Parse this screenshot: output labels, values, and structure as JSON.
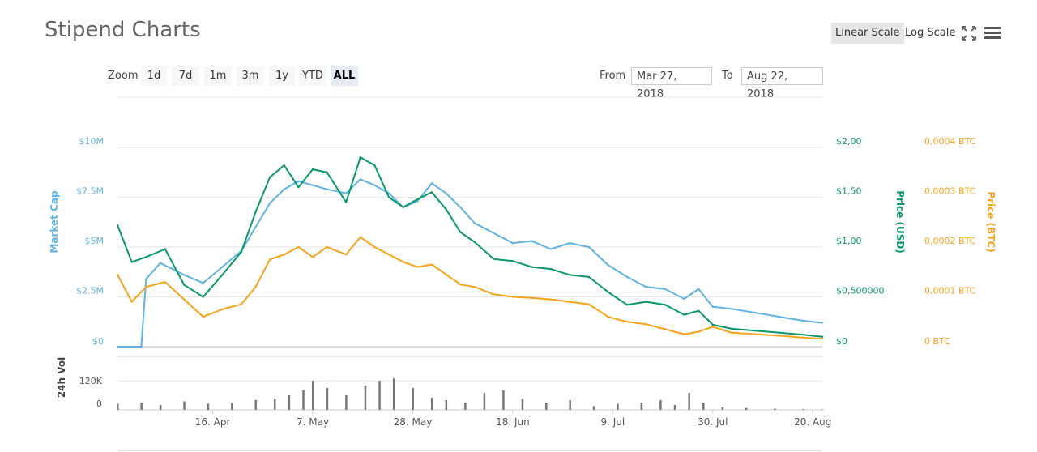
{
  "header": {
    "title": "Stipend Charts",
    "linear_label": "Linear Scale",
    "log_label": "Log Scale",
    "fullscreen_icon": "fullscreen-icon",
    "menu_icon": "hamburger-menu-icon"
  },
  "zoom": {
    "label": "Zoom",
    "buttons": [
      "1d",
      "7d",
      "1m",
      "3m",
      "1y",
      "YTD",
      "ALL"
    ],
    "active": "ALL"
  },
  "range": {
    "from_label": "From",
    "from_value": "Mar 27, 2018",
    "to_label": "To",
    "to_value": "Aug 22, 2018"
  },
  "colors": {
    "market_cap": "#5fb3e4",
    "price_usd": "#099866",
    "price_btc": "#f7a21b",
    "volume": "#777777",
    "grid": "#e6e6e6"
  },
  "chart_data": {
    "type": "line",
    "x_start": "2018-03-27",
    "x_end": "2018-08-22",
    "xticks": [
      "16. Apr",
      "7. May",
      "28. May",
      "18. Jun",
      "9. Jul",
      "30. Jul",
      "20. Aug"
    ],
    "axes": {
      "market_cap": {
        "label": "Market Cap",
        "ticks": [
          "$0",
          "$2.5M",
          "$5M",
          "$7.5M",
          "$10M"
        ],
        "ylim": [
          0,
          10000000
        ]
      },
      "price_usd": {
        "label": "Price (USD)",
        "ticks": [
          "$0",
          "$0,500000",
          "$1,00",
          "$1,50",
          "$2,00"
        ],
        "ylim": [
          0,
          2.0
        ]
      },
      "price_btc": {
        "label": "Price (BTC)",
        "ticks": [
          "0 BTC",
          "0,0001 BTC",
          "0,0002 BTC",
          "0,0003 BTC",
          "0,0004 BTC"
        ],
        "ylim": [
          0,
          0.0004
        ]
      },
      "volume": {
        "label": "24h Vol",
        "ticks": [
          "0",
          "120K"
        ],
        "ylim": [
          0,
          220000
        ]
      }
    },
    "series": [
      {
        "name": "Market Cap",
        "axis": "market_cap",
        "dates": [
          "2018-03-27",
          "2018-04-01",
          "2018-04-02",
          "2018-04-05",
          "2018-04-10",
          "2018-04-14",
          "2018-04-18",
          "2018-04-22",
          "2018-04-25",
          "2018-04-28",
          "2018-05-01",
          "2018-05-04",
          "2018-05-07",
          "2018-05-10",
          "2018-05-14",
          "2018-05-17",
          "2018-05-20",
          "2018-05-23",
          "2018-05-26",
          "2018-05-29",
          "2018-06-01",
          "2018-06-04",
          "2018-06-07",
          "2018-06-10",
          "2018-06-14",
          "2018-06-18",
          "2018-06-22",
          "2018-06-26",
          "2018-06-30",
          "2018-07-04",
          "2018-07-08",
          "2018-07-12",
          "2018-07-16",
          "2018-07-20",
          "2018-07-24",
          "2018-07-27",
          "2018-07-30",
          "2018-08-03",
          "2018-08-08",
          "2018-08-13",
          "2018-08-18",
          "2018-08-22"
        ],
        "values": [
          0,
          0,
          3400000,
          4200000,
          3600000,
          3200000,
          4000000,
          4800000,
          6000000,
          7200000,
          7900000,
          8300000,
          8100000,
          7900000,
          7700000,
          8400000,
          8100000,
          7700000,
          7000000,
          7300000,
          8200000,
          7700000,
          7000000,
          6200000,
          5700000,
          5200000,
          5300000,
          4900000,
          5200000,
          5000000,
          4100000,
          3500000,
          3000000,
          2900000,
          2400000,
          2900000,
          2000000,
          1900000,
          1700000,
          1500000,
          1300000,
          1200000
        ]
      },
      {
        "name": "Price (USD)",
        "axis": "price_usd",
        "dates": [
          "2018-03-27",
          "2018-03-30",
          "2018-04-02",
          "2018-04-06",
          "2018-04-10",
          "2018-04-14",
          "2018-04-18",
          "2018-04-22",
          "2018-04-25",
          "2018-04-28",
          "2018-05-01",
          "2018-05-04",
          "2018-05-07",
          "2018-05-10",
          "2018-05-14",
          "2018-05-17",
          "2018-05-20",
          "2018-05-23",
          "2018-05-26",
          "2018-05-29",
          "2018-06-01",
          "2018-06-04",
          "2018-06-07",
          "2018-06-10",
          "2018-06-14",
          "2018-06-18",
          "2018-06-22",
          "2018-06-26",
          "2018-06-30",
          "2018-07-04",
          "2018-07-08",
          "2018-07-12",
          "2018-07-16",
          "2018-07-20",
          "2018-07-24",
          "2018-07-27",
          "2018-07-30",
          "2018-08-03",
          "2018-08-08",
          "2018-08-13",
          "2018-08-18",
          "2018-08-22"
        ],
        "values": [
          1.22,
          0.85,
          0.9,
          0.98,
          0.62,
          0.5,
          0.72,
          0.95,
          1.35,
          1.7,
          1.82,
          1.6,
          1.78,
          1.75,
          1.45,
          1.9,
          1.82,
          1.5,
          1.4,
          1.48,
          1.55,
          1.38,
          1.15,
          1.05,
          0.88,
          0.86,
          0.8,
          0.78,
          0.72,
          0.7,
          0.55,
          0.42,
          0.45,
          0.42,
          0.32,
          0.36,
          0.22,
          0.18,
          0.16,
          0.14,
          0.12,
          0.1
        ]
      },
      {
        "name": "Price (BTC)",
        "axis": "price_btc",
        "dates": [
          "2018-03-27",
          "2018-03-30",
          "2018-04-02",
          "2018-04-06",
          "2018-04-10",
          "2018-04-14",
          "2018-04-18",
          "2018-04-22",
          "2018-04-25",
          "2018-04-28",
          "2018-05-01",
          "2018-05-04",
          "2018-05-07",
          "2018-05-10",
          "2018-05-14",
          "2018-05-17",
          "2018-05-20",
          "2018-05-23",
          "2018-05-26",
          "2018-05-29",
          "2018-06-01",
          "2018-06-04",
          "2018-06-07",
          "2018-06-10",
          "2018-06-14",
          "2018-06-18",
          "2018-06-22",
          "2018-06-26",
          "2018-06-30",
          "2018-07-04",
          "2018-07-08",
          "2018-07-12",
          "2018-07-16",
          "2018-07-20",
          "2018-07-24",
          "2018-07-27",
          "2018-07-30",
          "2018-08-03",
          "2018-08-08",
          "2018-08-13",
          "2018-08-18",
          "2018-08-22"
        ],
        "values": [
          0.000145,
          9e-05,
          0.00012,
          0.00013,
          9.5e-05,
          6e-05,
          7.5e-05,
          8.5e-05,
          0.00012,
          0.000175,
          0.000185,
          0.0002,
          0.00018,
          0.0002,
          0.000185,
          0.00022,
          0.0002,
          0.000185,
          0.00017,
          0.00016,
          0.000165,
          0.000145,
          0.000125,
          0.00012,
          0.000105,
          0.0001,
          9.8e-05,
          9.5e-05,
          9e-05,
          8.5e-05,
          6e-05,
          5e-05,
          4.5e-05,
          3.5e-05,
          2.5e-05,
          3e-05,
          4e-05,
          2.8e-05,
          2.5e-05,
          2.2e-05,
          1.8e-05,
          1.6e-05
        ]
      },
      {
        "name": "24h Vol",
        "axis": "volume",
        "dates": [
          "2018-03-27",
          "2018-04-01",
          "2018-04-05",
          "2018-04-10",
          "2018-04-15",
          "2018-04-20",
          "2018-04-25",
          "2018-04-29",
          "2018-05-02",
          "2018-05-05",
          "2018-05-07",
          "2018-05-10",
          "2018-05-14",
          "2018-05-18",
          "2018-05-21",
          "2018-05-24",
          "2018-05-28",
          "2018-06-01",
          "2018-06-04",
          "2018-06-08",
          "2018-06-12",
          "2018-06-16",
          "2018-06-20",
          "2018-06-25",
          "2018-06-30",
          "2018-07-05",
          "2018-07-10",
          "2018-07-15",
          "2018-07-19",
          "2018-07-22",
          "2018-07-25",
          "2018-07-28",
          "2018-08-01",
          "2018-08-06",
          "2018-08-12",
          "2018-08-18",
          "2018-08-22"
        ],
        "values": [
          25000,
          30000,
          20000,
          35000,
          25000,
          28000,
          40000,
          45000,
          60000,
          80000,
          120000,
          90000,
          60000,
          100000,
          120000,
          130000,
          90000,
          50000,
          40000,
          30000,
          70000,
          80000,
          45000,
          30000,
          40000,
          15000,
          25000,
          30000,
          40000,
          20000,
          70000,
          30000,
          10000,
          8000,
          5000,
          3000,
          2000
        ]
      }
    ]
  }
}
